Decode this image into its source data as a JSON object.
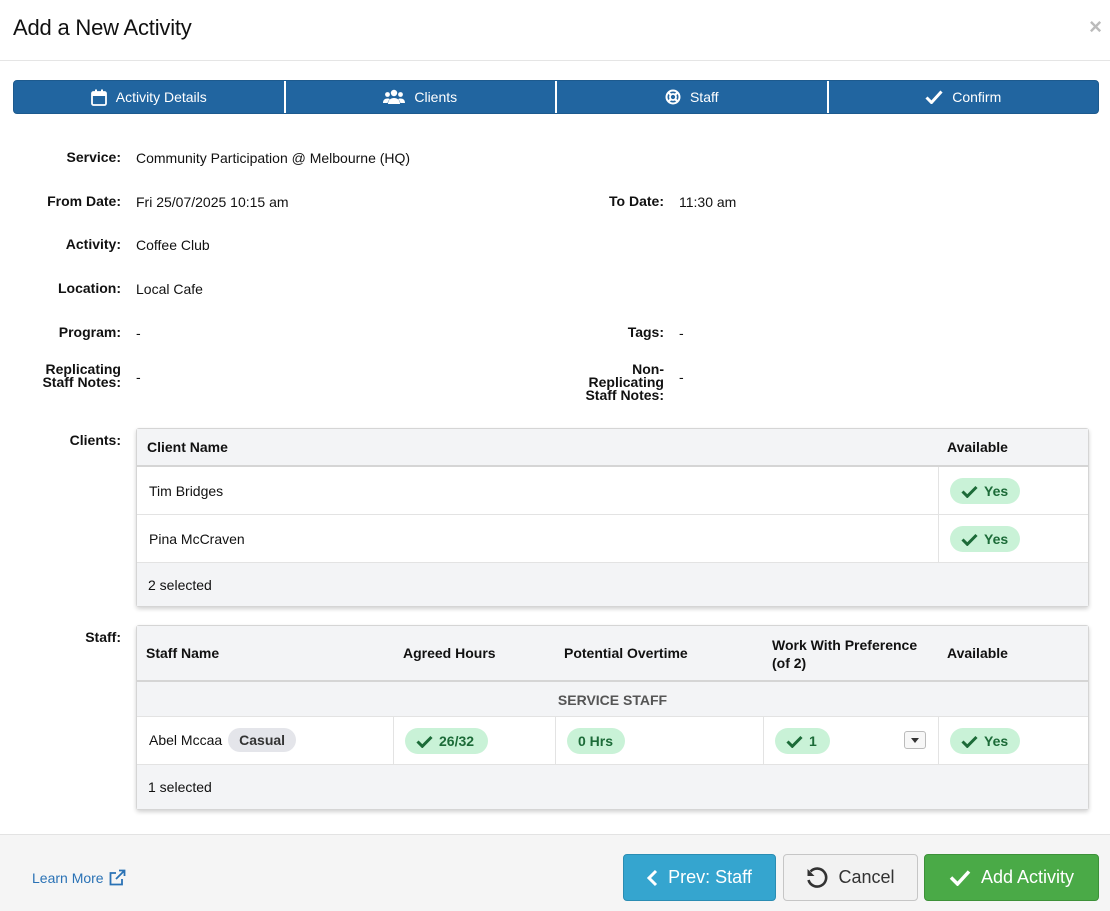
{
  "dialog": {
    "title": "Add a New Activity",
    "close": "×"
  },
  "steps": [
    {
      "label": "Activity Details",
      "icon": "calendar-icon"
    },
    {
      "label": "Clients",
      "icon": "users-icon"
    },
    {
      "label": "Staff",
      "icon": "lifebuoy-icon"
    },
    {
      "label": "Confirm",
      "icon": "check-icon"
    }
  ],
  "details": {
    "service_label": "Service:",
    "service": "Community Participation @ Melbourne (HQ)",
    "from_label": "From Date:",
    "from": "Fri 25/07/2025 10:15 am",
    "to_label": "To Date:",
    "to": "11:30 am",
    "activity_label": "Activity:",
    "activity": "Coffee Club",
    "location_label": "Location:",
    "location": "Local Cafe",
    "program_label": "Program:",
    "program": "-",
    "tags_label": "Tags:",
    "tags": "-",
    "rep_notes_label_1": "Replicating",
    "rep_notes_label_2": "Staff Notes:",
    "rep_notes": "-",
    "nonrep_notes_label_1": "Non-",
    "nonrep_notes_label_2": "Replicating",
    "nonrep_notes_label_3": "Staff Notes:",
    "nonrep_notes": "-"
  },
  "clients": {
    "label": "Clients:",
    "headers": {
      "name": "Client Name",
      "available": "Available"
    },
    "rows": [
      {
        "name": "Tim Bridges",
        "available": "Yes"
      },
      {
        "name": "Pina McCraven",
        "available": "Yes"
      }
    ],
    "footer": "2 selected"
  },
  "staff": {
    "label": "Staff:",
    "headers": {
      "name": "Staff Name",
      "agreed": "Agreed Hours",
      "overtime": "Potential Overtime",
      "pref_1": "Work With Preference",
      "pref_2": "(of 2)",
      "available": "Available"
    },
    "group": "SERVICE STAFF",
    "rows": [
      {
        "name": "Abel Mccaa",
        "badge": "Casual",
        "agreed": "26/32",
        "overtime": "0 Hrs",
        "pref": "1",
        "available": "Yes"
      }
    ],
    "footer": "1 selected"
  },
  "footer": {
    "learn_more": "Learn More",
    "prev": "Prev: Staff",
    "cancel": "Cancel",
    "add": "Add Activity"
  },
  "colors": {
    "primary": "#2165a0",
    "info": "#35a5cf",
    "success": "#4aaa47",
    "pill_bg": "#c9f2d7",
    "pill_text": "#1c6b38"
  }
}
